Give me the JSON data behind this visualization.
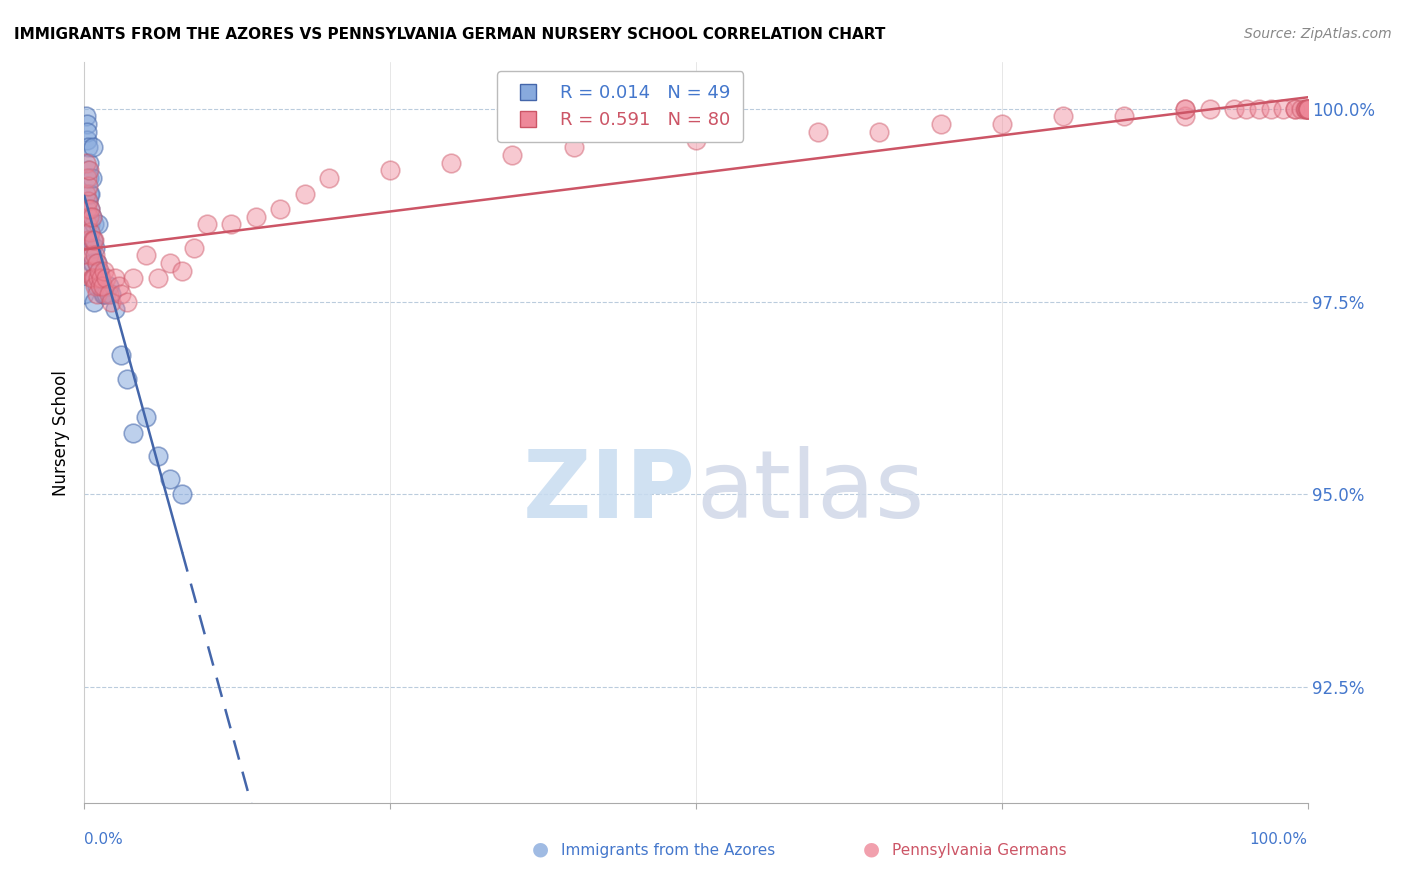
{
  "title": "IMMIGRANTS FROM THE AZORES VS PENNSYLVANIA GERMAN NURSERY SCHOOL CORRELATION CHART",
  "source": "Source: ZipAtlas.com",
  "ylabel": "Nursery School",
  "legend_label1": "Immigrants from the Azores",
  "legend_label2": "Pennsylvania Germans",
  "legend_r1": "R = 0.014",
  "legend_n1": "N = 49",
  "legend_r2": "R = 0.591",
  "legend_n2": "N = 80",
  "color_blue": "#88AADD",
  "color_pink": "#EE8899",
  "color_blue_line": "#4466AA",
  "color_pink_line": "#CC5566",
  "color_axis_labels": "#4477CC",
  "watermark_color": "#DDEEFF",
  "blue_x": [
    0.0,
    0.001,
    0.002,
    0.002,
    0.002,
    0.003,
    0.003,
    0.003,
    0.003,
    0.004,
    0.004,
    0.004,
    0.005,
    0.005,
    0.005,
    0.005,
    0.005,
    0.006,
    0.006,
    0.006,
    0.006,
    0.007,
    0.007,
    0.007,
    0.007,
    0.008,
    0.008,
    0.009,
    0.009,
    0.01,
    0.01,
    0.011,
    0.011,
    0.012,
    0.013,
    0.014,
    0.015,
    0.016,
    0.018,
    0.02,
    0.022,
    0.025,
    0.03,
    0.035,
    0.04,
    0.05,
    0.06,
    0.07,
    0.08
  ],
  "blue_y": [
    97.6,
    99.9,
    99.8,
    99.6,
    99.7,
    99.5,
    99.2,
    98.6,
    98.8,
    99.3,
    98.9,
    99.1,
    98.5,
    98.3,
    98.9,
    98.7,
    98.4,
    98.0,
    98.2,
    99.1,
    98.6,
    97.8,
    98.0,
    99.5,
    98.3,
    97.5,
    98.5,
    97.8,
    98.2,
    97.7,
    98.0,
    97.8,
    98.5,
    97.9,
    97.8,
    97.7,
    97.6,
    97.6,
    97.6,
    97.7,
    97.6,
    97.4,
    96.8,
    96.5,
    95.8,
    96.0,
    95.5,
    95.2,
    95.0
  ],
  "pink_x": [
    0.001,
    0.001,
    0.002,
    0.002,
    0.002,
    0.003,
    0.003,
    0.003,
    0.004,
    0.004,
    0.004,
    0.005,
    0.005,
    0.005,
    0.006,
    0.006,
    0.006,
    0.007,
    0.007,
    0.008,
    0.008,
    0.009,
    0.009,
    0.01,
    0.01,
    0.011,
    0.012,
    0.013,
    0.014,
    0.015,
    0.016,
    0.018,
    0.02,
    0.022,
    0.025,
    0.028,
    0.03,
    0.035,
    0.04,
    0.05,
    0.06,
    0.07,
    0.08,
    0.09,
    0.1,
    0.12,
    0.14,
    0.16,
    0.18,
    0.2,
    0.25,
    0.3,
    0.35,
    0.4,
    0.5,
    0.6,
    0.65,
    0.7,
    0.75,
    0.8,
    0.85,
    0.9,
    0.9,
    0.9,
    0.92,
    0.94,
    0.95,
    0.96,
    0.97,
    0.98,
    0.99,
    0.99,
    0.995,
    0.998,
    0.999,
    0.999,
    1.0,
    1.0,
    1.0,
    1.0
  ],
  "pink_y": [
    99.3,
    98.9,
    98.5,
    99.1,
    98.7,
    98.3,
    98.8,
    99.0,
    98.1,
    98.6,
    99.2,
    97.9,
    98.4,
    98.7,
    98.1,
    98.6,
    97.8,
    97.8,
    98.3,
    97.8,
    98.3,
    97.7,
    98.1,
    97.6,
    98.0,
    97.8,
    97.9,
    97.7,
    97.8,
    97.7,
    97.9,
    97.8,
    97.6,
    97.5,
    97.8,
    97.7,
    97.6,
    97.5,
    97.8,
    98.1,
    97.8,
    98.0,
    97.9,
    98.2,
    98.5,
    98.5,
    98.6,
    98.7,
    98.9,
    99.1,
    99.2,
    99.3,
    99.4,
    99.5,
    99.6,
    99.7,
    99.7,
    99.8,
    99.8,
    99.9,
    99.9,
    99.9,
    100.0,
    100.0,
    100.0,
    100.0,
    100.0,
    100.0,
    100.0,
    100.0,
    100.0,
    100.0,
    100.0,
    100.0,
    100.0,
    100.0,
    100.0,
    100.0,
    100.0,
    100.0
  ]
}
